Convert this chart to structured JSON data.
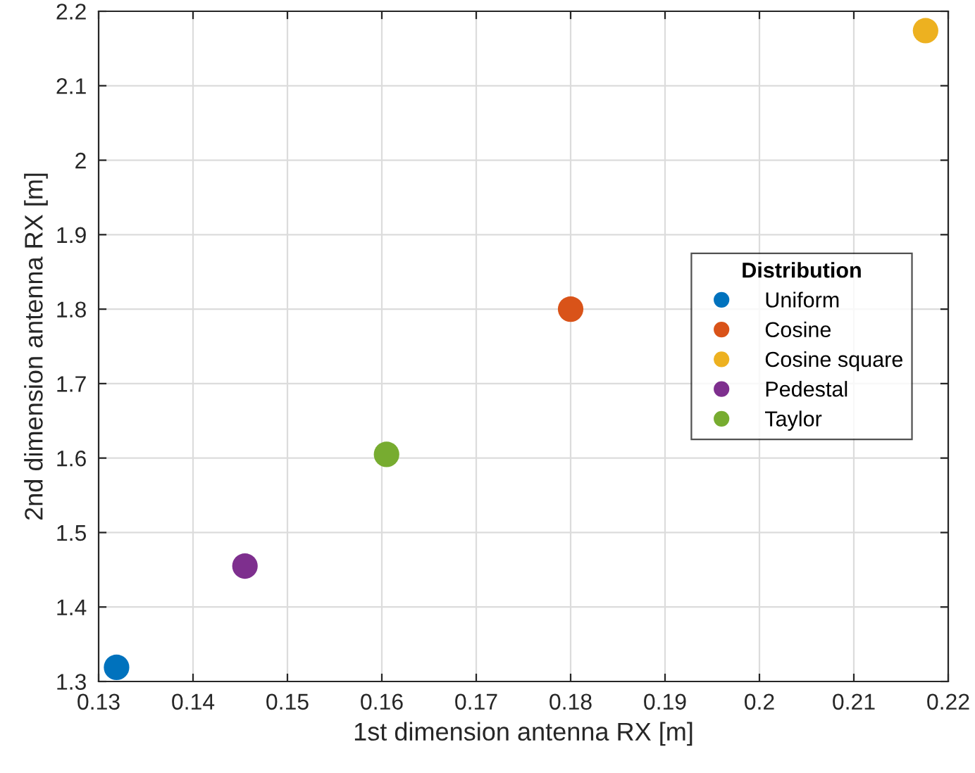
{
  "chart_data": {
    "type": "scatter",
    "xlabel": "1st dimension antenna RX [m]",
    "ylabel": "2nd dimension antenna RX [m]",
    "legend_title": "Distribution",
    "legend": "right",
    "grid": true,
    "marker": "circle",
    "xlim": [
      0.13,
      0.22
    ],
    "xticks": [
      0.13,
      0.14,
      0.15,
      0.16,
      0.17,
      0.18,
      0.19,
      0.2,
      0.21,
      0.22
    ],
    "ylim": [
      1.3,
      2.2
    ],
    "yticks": [
      1.3,
      1.4,
      1.5,
      1.6,
      1.7,
      1.8,
      1.9,
      2,
      2.1,
      2.2
    ],
    "series": [
      {
        "name": "Uniform",
        "color": "#0072bd",
        "x": [
          0.1319
        ],
        "values": [
          1.319
        ]
      },
      {
        "name": "Cosine",
        "color": "#d95319",
        "x": [
          0.18
        ],
        "values": [
          1.8
        ]
      },
      {
        "name": "Cosine square",
        "color": "#edb120",
        "x": [
          0.2176
        ],
        "values": [
          2.174
        ]
      },
      {
        "name": "Pedestal",
        "color": "#7e2f8e",
        "x": [
          0.1455
        ],
        "values": [
          1.455
        ]
      },
      {
        "name": "Taylor",
        "color": "#77ac30",
        "x": [
          0.1605
        ],
        "values": [
          1.605
        ]
      }
    ]
  }
}
